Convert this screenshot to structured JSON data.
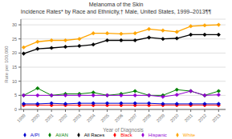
{
  "chart_data": {
    "type": "line",
    "title": "Melanoma of the Skin",
    "subtitle": "Incidence Rates* by Race and Ethnicity,† Male, United States, 1999–2013¶¶",
    "xlabel": "Year of Diagnosis",
    "ylabel": "Rate per 100,000",
    "x": [
      1999,
      2000,
      2001,
      2002,
      2003,
      2004,
      2005,
      2006,
      2007,
      2008,
      2009,
      2010,
      2011,
      2012,
      2013
    ],
    "series": [
      {
        "name": "All Races",
        "color": "#000000",
        "marker": "diamond",
        "values": [
          19.8,
          21.5,
          21.8,
          22.2,
          22.5,
          23.0,
          24.5,
          24.5,
          24.5,
          25.5,
          25.0,
          25.2,
          26.5,
          26.5,
          26.5
        ]
      },
      {
        "name": "White",
        "color": "#FFA500",
        "marker": "diamond",
        "values": [
          22.0,
          24.0,
          24.5,
          24.5,
          25.0,
          27.0,
          27.0,
          26.8,
          27.0,
          28.5,
          28.0,
          27.5,
          29.5,
          29.8,
          30.0
        ]
      },
      {
        "name": "Black",
        "color": "#FF0000",
        "marker": "diamond",
        "values": [
          1.5,
          1.5,
          1.5,
          1.5,
          1.5,
          1.5,
          1.5,
          1.5,
          1.5,
          1.5,
          1.5,
          1.5,
          1.5,
          1.5,
          1.5
        ]
      },
      {
        "name": "A/PI",
        "color": "#0000CD",
        "marker": "diamond",
        "values": [
          2.0,
          2.0,
          2.2,
          2.0,
          2.2,
          2.2,
          2.2,
          2.2,
          2.2,
          2.2,
          2.0,
          2.0,
          2.0,
          2.0,
          2.0
        ]
      },
      {
        "name": "AI/AN",
        "color": "#008000",
        "marker": "diamond",
        "values": [
          5.0,
          7.5,
          5.0,
          5.5,
          5.5,
          6.0,
          5.0,
          5.5,
          6.5,
          5.0,
          5.0,
          7.0,
          6.5,
          5.0,
          6.5
        ]
      },
      {
        "name": "Hispanic",
        "color": "#9400D3",
        "marker": "diamond",
        "values": [
          5.0,
          5.0,
          5.0,
          5.0,
          5.0,
          5.0,
          5.0,
          5.0,
          5.0,
          5.0,
          4.5,
          5.2,
          6.5,
          5.0,
          5.2
        ]
      }
    ],
    "xlim": [
      1998.8,
      2013.5
    ],
    "xticks": [
      1999,
      2000,
      2001,
      2002,
      2003,
      2004,
      2005,
      2006,
      2007,
      2008,
      2009,
      2010,
      2011,
      2012,
      2013
    ],
    "ylim": [
      0,
      32
    ],
    "yticks": [
      0,
      5,
      10,
      15,
      20,
      25,
      30
    ],
    "grid": true,
    "legend": "bottom"
  }
}
